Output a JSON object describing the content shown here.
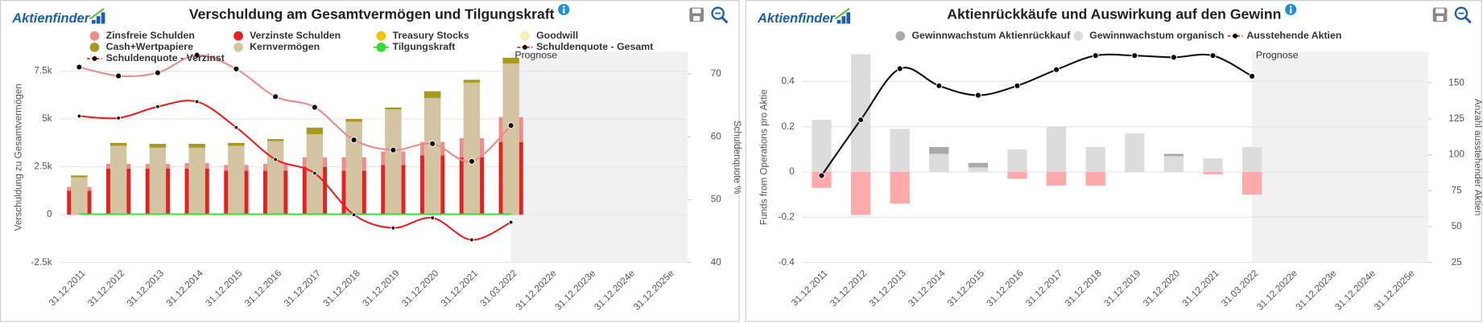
{
  "chart_data": [
    {
      "type": "combo",
      "logo": "Aktienfinder",
      "title": "Verschuldung am Gesamtvermögen und Tilgungskraft",
      "ylabel": "Verschuldung zu Gesamtvermögen",
      "y2label": "Schuldenquote %",
      "forecast_label": "Prognose",
      "categories": [
        "31.12.2011",
        "31.12.2012",
        "31.12.2013",
        "31.12.2014",
        "31.12.2015",
        "31.12.2016",
        "31.12.2017",
        "31.12.2018",
        "31.12.2019",
        "31.12.2020",
        "31.12.2021",
        "31.03.2022",
        "31.12.2022e",
        "31.12.2023e",
        "31.12.2024e",
        "31.12.2025e"
      ],
      "ylim": [
        -2500,
        8500
      ],
      "yticks": [
        {
          "value": -2500,
          "label": "-2.5k"
        },
        0,
        {
          "value": 2500,
          "label": "2.5k"
        },
        {
          "value": 5000,
          "label": "5k"
        },
        {
          "value": 7500,
          "label": "7.5k"
        }
      ],
      "y2lim": [
        40,
        73.5
      ],
      "y2ticks": [
        40,
        50,
        60,
        70
      ],
      "grid": true,
      "series": [
        {
          "name": "Zinsfreie Schulden",
          "type": "bar",
          "stack": 0,
          "color": "#f08c8c",
          "values": [
            200,
            250,
            250,
            300,
            300,
            350,
            500,
            700,
            700,
            700,
            1000,
            1300,
            null,
            null,
            null,
            null
          ]
        },
        {
          "name": "Verzinste Schulden",
          "type": "bar",
          "stack": 0,
          "color": "#e8201f",
          "values": [
            1250,
            2400,
            2400,
            2400,
            2300,
            2300,
            2500,
            2300,
            2600,
            3100,
            3000,
            3800,
            null,
            null,
            null,
            null
          ]
        },
        {
          "name": "Treasury Stocks",
          "type": "bar",
          "stack": 1,
          "color": "#f5c400",
          "values": [
            null,
            null,
            null,
            null,
            null,
            null,
            null,
            null,
            null,
            null,
            null,
            null,
            null,
            null,
            null,
            null
          ]
        },
        {
          "name": "Goodwill",
          "type": "bar",
          "stack": 1,
          "color": "#f7eeb0",
          "values": [
            null,
            null,
            null,
            null,
            null,
            null,
            null,
            null,
            null,
            null,
            null,
            null,
            null,
            null,
            null,
            null
          ]
        },
        {
          "name": "Cash+Wertpapiere",
          "type": "bar",
          "stack": 1,
          "color": "#a89a1c",
          "values": [
            100,
            150,
            200,
            200,
            150,
            100,
            350,
            150,
            100,
            350,
            150,
            300,
            null,
            null,
            null,
            null
          ]
        },
        {
          "name": "Kernvermögen",
          "type": "bar",
          "stack": 1,
          "color": "#d4c5a2",
          "values": [
            1950,
            3600,
            3500,
            3500,
            3600,
            3850,
            4200,
            4850,
            5500,
            6100,
            6900,
            7900,
            null,
            null,
            null,
            null
          ]
        },
        {
          "name": "Tilgungskraft",
          "type": "line",
          "color": "#33dd33",
          "marker": 0,
          "values": [
            30,
            30,
            30,
            30,
            30,
            30,
            30,
            30,
            30,
            30,
            30,
            30,
            null,
            null,
            null,
            null
          ]
        },
        {
          "name": "Schuldenquote - Gesamt",
          "type": "line",
          "axis": "y2",
          "color": "#f08a8a",
          "marker": 3,
          "values": [
            71.1,
            69.7,
            70.2,
            73,
            70.8,
            66.4,
            64.7,
            59.5,
            57.9,
            58.9,
            56.1,
            61.8,
            null,
            null,
            null,
            null
          ]
        },
        {
          "name": "Schuldenquote - Verzinst",
          "type": "line",
          "axis": "y2",
          "color": "#e8201f",
          "marker": 2,
          "values": [
            63.3,
            63,
            64.8,
            65.6,
            61.5,
            56.4,
            54.2,
            47.6,
            45.5,
            47.1,
            43.6,
            46.4,
            null,
            null,
            null,
            null
          ]
        }
      ]
    },
    {
      "type": "combo",
      "logo": "Aktienfinder",
      "title": "Aktienrückkäufe und Auswirkung auf den Gewinn",
      "ylabel": "Funds from Operations pro Aktie",
      "y2label": "Anzahl ausstehender Aktien",
      "forecast_label": "Prognose",
      "categories": [
        "31.12.2011",
        "31.12.2012",
        "31.12.2013",
        "31.12.2014",
        "31.12.2015",
        "31.12.2016",
        "31.12.2017",
        "31.12.2018",
        "31.12.2019",
        "31.12.2020",
        "31.12.2021",
        "31.03.2022",
        "31.12.2022e",
        "31.12.2023e",
        "31.12.2024e",
        "31.12.2025e"
      ],
      "ylim": [
        -0.4,
        0.53
      ],
      "yticks": [
        -0.4,
        -0.2,
        0,
        0.2,
        0.4
      ],
      "y2lim": [
        25,
        171.5
      ],
      "y2ticks": [
        25,
        50,
        75,
        100,
        125,
        150
      ],
      "grid": true,
      "series": [
        {
          "name": "Gewinnwachstum Aktienrückkauf",
          "type": "bar",
          "stack": 0,
          "color": "#a9a9a9",
          "negative_color": "#ffaaaa",
          "values": [
            -0.07,
            -0.19,
            -0.14,
            0.03,
            0.02,
            -0.03,
            -0.06,
            -0.06,
            0,
            0.01,
            -0.01,
            -0.1,
            null,
            null,
            null,
            null
          ]
        },
        {
          "name": "Gewinnwachstum organisch",
          "type": "bar",
          "stack": 0,
          "color": "#dcdcdc",
          "negative_color": "#ffaaaa",
          "values": [
            0.23,
            0.52,
            0.19,
            0.08,
            0.02,
            0.1,
            0.2,
            0.11,
            0.17,
            0.07,
            0.06,
            0.11,
            null,
            null,
            null,
            null
          ]
        },
        {
          "name": "Ausstehende Aktien",
          "type": "line",
          "axis": "y2",
          "color": "#111111",
          "marker": 3,
          "values": [
            85.5,
            124.3,
            159.9,
            148,
            141.4,
            148,
            159.2,
            169,
            169,
            167.8,
            169,
            154.6,
            null,
            null,
            null,
            null
          ]
        }
      ]
    }
  ]
}
